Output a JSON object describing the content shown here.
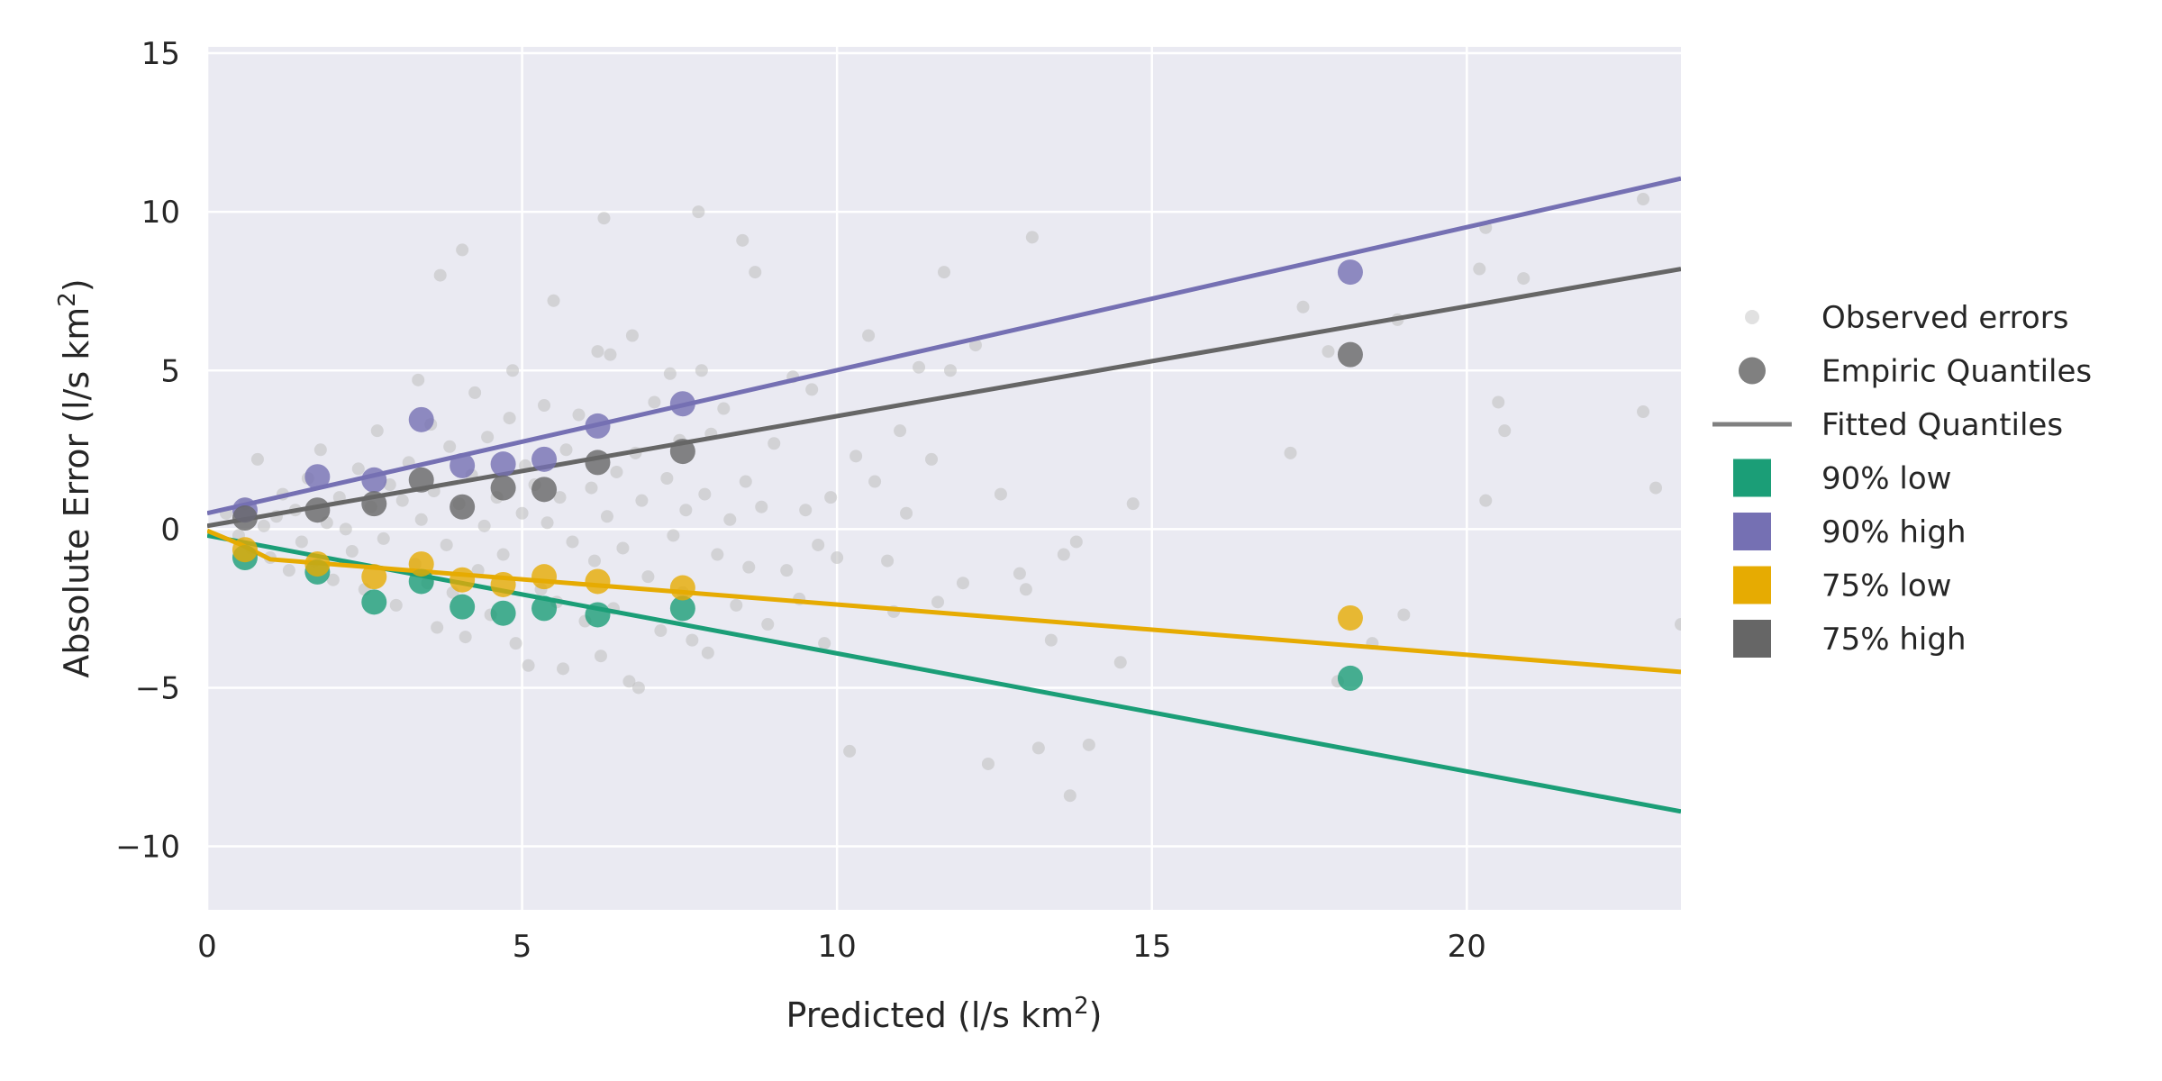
{
  "chart_data": {
    "type": "scatter",
    "xlabel": "Predicted (l/s km²)",
    "ylabel": "Absolute Error (l/s km²)",
    "xlim": [
      0,
      23.4
    ],
    "ylim": [
      -12,
      15.2
    ],
    "xticks": [
      0,
      5,
      10,
      15,
      20
    ],
    "yticks": [
      -10,
      -5,
      0,
      5,
      10,
      15
    ],
    "xtick_labels": [
      "0",
      "5",
      "10",
      "15",
      "20"
    ],
    "ytick_labels": [
      "−10",
      "−5",
      "0",
      "5",
      "10",
      "15"
    ],
    "grid": true,
    "legend_position": "right",
    "background": "#eaeaf2",
    "observed": {
      "label": "Observed errors",
      "color": "#bdbdbd",
      "points": [
        [
          0.3,
          0.5
        ],
        [
          0.5,
          -0.2
        ],
        [
          0.6,
          0.8
        ],
        [
          0.7,
          -0.6
        ],
        [
          0.8,
          2.2
        ],
        [
          0.9,
          0.1
        ],
        [
          1.0,
          -0.9
        ],
        [
          1.1,
          0.4
        ],
        [
          1.2,
          1.1
        ],
        [
          1.3,
          -1.3
        ],
        [
          1.4,
          0.6
        ],
        [
          1.5,
          -0.4
        ],
        [
          1.6,
          1.6
        ],
        [
          1.7,
          -1.0
        ],
        [
          1.8,
          2.5
        ],
        [
          1.9,
          0.2
        ],
        [
          2.0,
          -1.6
        ],
        [
          2.1,
          1.0
        ],
        [
          2.2,
          0.0
        ],
        [
          2.3,
          -0.7
        ],
        [
          2.4,
          1.9
        ],
        [
          2.5,
          -1.9
        ],
        [
          2.6,
          0.7
        ],
        [
          2.7,
          3.1
        ],
        [
          2.8,
          -0.3
        ],
        [
          2.9,
          1.4
        ],
        [
          3.0,
          -2.4
        ],
        [
          3.1,
          0.9
        ],
        [
          3.2,
          2.1
        ],
        [
          3.3,
          -1.1
        ],
        [
          3.35,
          4.7
        ],
        [
          3.4,
          0.3
        ],
        [
          3.5,
          -1.7
        ],
        [
          3.55,
          3.3
        ],
        [
          3.6,
          1.2
        ],
        [
          3.65,
          -3.1
        ],
        [
          3.7,
          8.0
        ],
        [
          3.8,
          -0.5
        ],
        [
          3.85,
          2.6
        ],
        [
          3.9,
          -2.0
        ],
        [
          4.0,
          0.8
        ],
        [
          4.05,
          8.8
        ],
        [
          4.1,
          -3.4
        ],
        [
          4.2,
          1.7
        ],
        [
          4.25,
          4.3
        ],
        [
          4.3,
          -1.3
        ],
        [
          4.4,
          0.1
        ],
        [
          4.45,
          2.9
        ],
        [
          4.5,
          -2.7
        ],
        [
          4.6,
          1.0
        ],
        [
          4.7,
          -0.8
        ],
        [
          4.8,
          3.5
        ],
        [
          4.85,
          5.0
        ],
        [
          4.9,
          -3.6
        ],
        [
          5.0,
          0.5
        ],
        [
          5.05,
          2.0
        ],
        [
          5.1,
          -4.3
        ],
        [
          5.2,
          1.4
        ],
        [
          5.3,
          -1.9
        ],
        [
          5.35,
          3.9
        ],
        [
          5.4,
          0.2
        ],
        [
          5.5,
          7.2
        ],
        [
          5.55,
          -2.3
        ],
        [
          5.6,
          1.0
        ],
        [
          5.65,
          -4.4
        ],
        [
          5.7,
          2.5
        ],
        [
          5.8,
          -0.4
        ],
        [
          5.9,
          3.6
        ],
        [
          6.0,
          -2.9
        ],
        [
          6.1,
          1.3
        ],
        [
          6.15,
          -1.0
        ],
        [
          6.2,
          5.6
        ],
        [
          6.25,
          -4.0
        ],
        [
          6.3,
          9.8
        ],
        [
          6.35,
          0.4
        ],
        [
          6.4,
          5.5
        ],
        [
          6.45,
          -2.5
        ],
        [
          6.5,
          1.8
        ],
        [
          6.6,
          -0.6
        ],
        [
          6.7,
          -4.8
        ],
        [
          6.75,
          6.1
        ],
        [
          6.8,
          2.4
        ],
        [
          6.85,
          -5.0
        ],
        [
          6.9,
          0.9
        ],
        [
          7.0,
          -1.5
        ],
        [
          7.1,
          4.0
        ],
        [
          7.2,
          -3.2
        ],
        [
          7.3,
          1.6
        ],
        [
          7.35,
          4.9
        ],
        [
          7.4,
          -0.2
        ],
        [
          7.5,
          2.8
        ],
        [
          7.55,
          -2.0
        ],
        [
          7.6,
          0.6
        ],
        [
          7.7,
          -3.5
        ],
        [
          7.8,
          10.0
        ],
        [
          7.85,
          5.0
        ],
        [
          7.9,
          1.1
        ],
        [
          7.95,
          -3.9
        ],
        [
          8.0,
          3.0
        ],
        [
          8.1,
          -0.8
        ],
        [
          8.2,
          3.8
        ],
        [
          8.3,
          0.3
        ],
        [
          8.4,
          -2.4
        ],
        [
          8.5,
          9.1
        ],
        [
          8.55,
          1.5
        ],
        [
          8.6,
          -1.2
        ],
        [
          8.7,
          8.1
        ],
        [
          8.8,
          0.7
        ],
        [
          8.9,
          -3.0
        ],
        [
          9.0,
          2.7
        ],
        [
          9.2,
          -1.3
        ],
        [
          9.3,
          4.8
        ],
        [
          9.4,
          -2.2
        ],
        [
          9.5,
          0.6
        ],
        [
          9.6,
          4.4
        ],
        [
          9.7,
          -0.5
        ],
        [
          9.8,
          -3.6
        ],
        [
          9.9,
          1.0
        ],
        [
          10.0,
          -0.9
        ],
        [
          10.2,
          -7.0
        ],
        [
          10.3,
          2.3
        ],
        [
          10.5,
          6.1
        ],
        [
          10.6,
          1.5
        ],
        [
          10.8,
          -1.0
        ],
        [
          10.9,
          -2.6
        ],
        [
          11.0,
          3.1
        ],
        [
          11.1,
          0.5
        ],
        [
          11.3,
          5.1
        ],
        [
          11.5,
          2.2
        ],
        [
          11.6,
          -2.3
        ],
        [
          11.7,
          8.1
        ],
        [
          11.8,
          5.0
        ],
        [
          12.0,
          -1.7
        ],
        [
          12.2,
          5.8
        ],
        [
          12.4,
          -7.4
        ],
        [
          12.6,
          1.1
        ],
        [
          12.9,
          -1.4
        ],
        [
          13.0,
          -1.9
        ],
        [
          13.1,
          9.2
        ],
        [
          13.2,
          -6.9
        ],
        [
          13.4,
          -3.5
        ],
        [
          13.6,
          -0.8
        ],
        [
          13.7,
          -8.4
        ],
        [
          13.8,
          -0.4
        ],
        [
          14.0,
          -6.8
        ],
        [
          14.5,
          -4.2
        ],
        [
          14.7,
          0.8
        ],
        [
          17.2,
          2.4
        ],
        [
          17.4,
          7.0
        ],
        [
          17.8,
          5.6
        ],
        [
          17.95,
          -4.8
        ],
        [
          18.5,
          -3.6
        ],
        [
          18.9,
          6.6
        ],
        [
          19.0,
          -2.7
        ],
        [
          20.2,
          8.2
        ],
        [
          20.3,
          9.5
        ],
        [
          20.3,
          0.9
        ],
        [
          20.5,
          4.0
        ],
        [
          20.6,
          3.1
        ],
        [
          20.9,
          7.9
        ],
        [
          22.8,
          10.4
        ],
        [
          22.8,
          3.7
        ],
        [
          23.0,
          1.3
        ],
        [
          23.4,
          -3.0
        ]
      ]
    },
    "series": [
      {
        "name": "90% low",
        "color": "#1b9e77",
        "quantiles": [
          [
            0.6,
            -0.9
          ],
          [
            1.75,
            -1.35
          ],
          [
            2.65,
            -2.3
          ],
          [
            3.4,
            -1.65
          ],
          [
            4.05,
            -2.45
          ],
          [
            4.7,
            -2.65
          ],
          [
            5.35,
            -2.5
          ],
          [
            6.2,
            -2.7
          ],
          [
            7.55,
            -2.5
          ],
          [
            18.15,
            -4.7
          ]
        ],
        "fit": [
          [
            0,
            -0.2
          ],
          [
            23.4,
            -8.9
          ]
        ]
      },
      {
        "name": "90% high",
        "color": "#7570b3",
        "quantiles": [
          [
            0.6,
            0.6
          ],
          [
            1.75,
            1.65
          ],
          [
            2.65,
            1.55
          ],
          [
            3.4,
            3.45
          ],
          [
            4.05,
            2.0
          ],
          [
            4.7,
            2.05
          ],
          [
            5.35,
            2.2
          ],
          [
            6.2,
            3.25
          ],
          [
            7.55,
            3.95
          ],
          [
            18.15,
            8.1
          ]
        ],
        "fit": [
          [
            0,
            0.5
          ],
          [
            23.4,
            11.05
          ]
        ]
      },
      {
        "name": "75% low",
        "color": "#e6ab02",
        "quantiles": [
          [
            0.6,
            -0.65
          ],
          [
            1.75,
            -1.1
          ],
          [
            2.65,
            -1.5
          ],
          [
            3.4,
            -1.1
          ],
          [
            4.05,
            -1.6
          ],
          [
            4.7,
            -1.75
          ],
          [
            5.35,
            -1.5
          ],
          [
            6.2,
            -1.65
          ],
          [
            7.55,
            -1.85
          ],
          [
            18.15,
            -2.8
          ]
        ],
        "fit": [
          [
            0,
            -0.05
          ],
          [
            0.55,
            -0.5
          ],
          [
            1.0,
            -0.95
          ],
          [
            23.4,
            -4.5
          ]
        ]
      },
      {
        "name": "75% high",
        "color": "#666666",
        "quantiles": [
          [
            0.6,
            0.35
          ],
          [
            1.75,
            0.6
          ],
          [
            2.65,
            0.8
          ],
          [
            3.4,
            1.55
          ],
          [
            4.05,
            0.7
          ],
          [
            4.7,
            1.3
          ],
          [
            5.35,
            1.25
          ],
          [
            6.2,
            2.1
          ],
          [
            7.55,
            2.45
          ],
          [
            18.15,
            5.5
          ]
        ],
        "fit": [
          [
            0,
            0.1
          ],
          [
            23.4,
            8.2
          ]
        ]
      }
    ],
    "legend": {
      "observed_label": "Observed errors",
      "empiric_label": "Empiric Quantiles",
      "fitted_label": "Fitted Quantiles",
      "marker_color": "#808080"
    }
  }
}
